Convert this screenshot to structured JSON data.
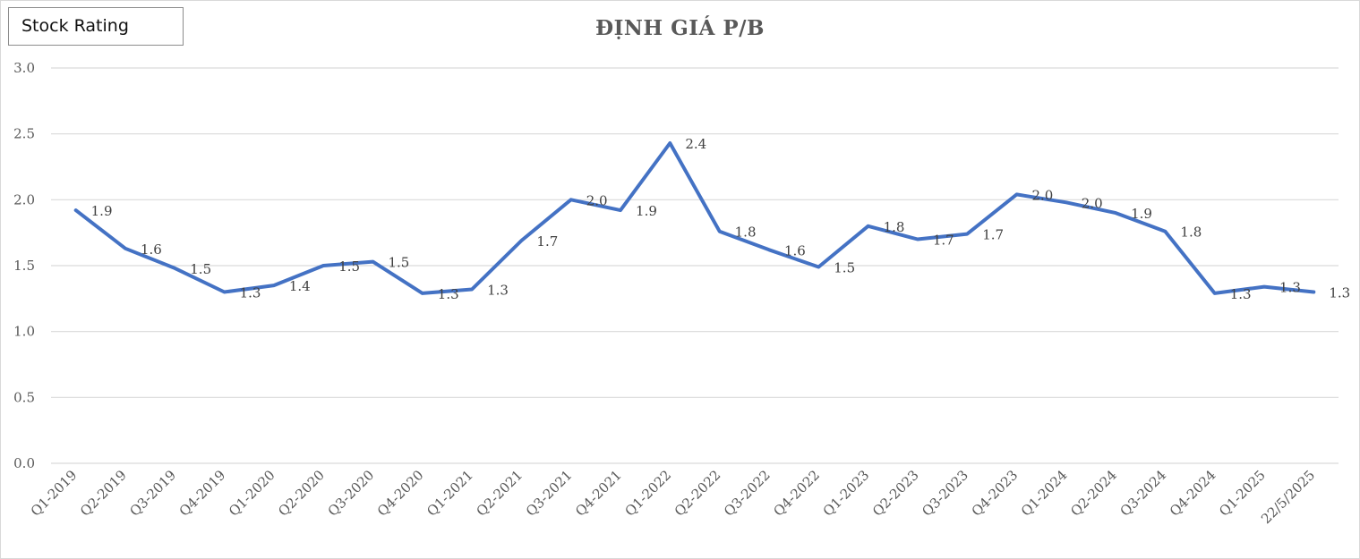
{
  "badge": {
    "label": "Stock Rating"
  },
  "chart_data": {
    "type": "line",
    "title": "ĐỊNH GIÁ P/B",
    "xlabel": "",
    "ylabel": "",
    "ylim": [
      0,
      3
    ],
    "yticks": [
      "0.0",
      "0.5",
      "1.0",
      "1.5",
      "2.0",
      "2.5",
      "3.0"
    ],
    "grid": true,
    "legend": "none",
    "line_color": "#4472c4",
    "categories": [
      "Q1-2019",
      "Q2-2019",
      "Q3-2019",
      "Q4-2019",
      "Q1-2020",
      "Q2-2020",
      "Q3-2020",
      "Q4-2020",
      "Q1-2021",
      "Q2-2021",
      "Q3-2021",
      "Q4-2021",
      "Q1-2022",
      "Q2-2022",
      "Q3-2022",
      "Q4-2022",
      "Q1-2023",
      "Q2-2023",
      "Q3-2023",
      "Q4-2023",
      "Q1-2024",
      "Q2-2024",
      "Q3-2024",
      "Q4-2024",
      "Q1-2025",
      "22/5/2025"
    ],
    "values": [
      1.92,
      1.63,
      1.48,
      1.3,
      1.35,
      1.5,
      1.53,
      1.29,
      1.32,
      1.69,
      2.0,
      1.92,
      2.43,
      1.76,
      1.62,
      1.49,
      1.8,
      1.7,
      1.74,
      2.04,
      1.98,
      1.9,
      1.76,
      1.29,
      1.34,
      1.3
    ],
    "data_labels": [
      "1.9",
      "1.6",
      "1.5",
      "1.3",
      "1.4",
      "1.5",
      "1.5",
      "1.3",
      "1.3",
      "1.7",
      "2.0",
      "1.9",
      "2.4",
      "1.8",
      "1.6",
      "1.5",
      "1.8",
      "1.7",
      "1.7",
      "2.0",
      "2.0",
      "1.9",
      "1.8",
      "1.3",
      "1.3",
      "1.3"
    ]
  }
}
